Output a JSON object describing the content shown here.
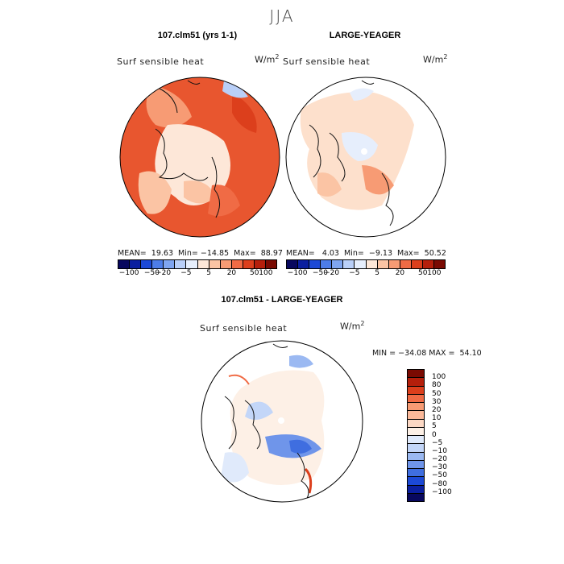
{
  "season": "JJA",
  "panels": [
    {
      "title": "107.clm51 (yrs 1-1)",
      "variable": "Surf sensible heat",
      "units_base": "W/m",
      "units_exp": "2",
      "stats": "MEAN=  19.63  Min= −14.85  Max=  88.97",
      "fill": "#e8562f",
      "colorbar_labels": [
        "−100",
        "−50",
        "−20",
        "−5",
        "5",
        "20",
        "50",
        "100"
      ]
    },
    {
      "title": "LARGE-YEAGER",
      "variable": "Surf sensible heat",
      "units_base": "W/m",
      "units_exp": "2",
      "stats": "MEAN=   4.03  Min=  −9.13  Max=  50.52",
      "fill": "#fde0cc",
      "colorbar_labels": [
        "−100",
        "−50",
        "−20",
        "−5",
        "5",
        "20",
        "50",
        "100"
      ]
    }
  ],
  "diff": {
    "title": "107.clm51 - LARGE-YEAGER",
    "variable": "Surf sensible heat",
    "units_base": "W/m",
    "units_exp": "2",
    "minmax": "MIN = −34.08 MAX =  54.10",
    "colorbar_labels": [
      "100",
      "80",
      "50",
      "30",
      "20",
      "10",
      "5",
      "0",
      "−5",
      "−10",
      "−20",
      "−30",
      "−50",
      "−80",
      "−100"
    ]
  },
  "colors": {
    "abs_scale": [
      "#08085e",
      "#0b1f9f",
      "#1c49d6",
      "#4d7de8",
      "#7fa5f0",
      "#b9cff8",
      "#e6eefc",
      "#fde7d8",
      "#fbc4a4",
      "#f79b74",
      "#f06b45",
      "#dc3f1c",
      "#b51f0b",
      "#7a0a02"
    ],
    "diff_scale": [
      "#7a0a02",
      "#b51f0b",
      "#dc3f1c",
      "#f06b45",
      "#f79b74",
      "#fbb99a",
      "#fcd8c4",
      "#fdf0e6",
      "#e0eafb",
      "#c3d6f8",
      "#9bb9f2",
      "#6f95ea",
      "#3f6ee0",
      "#1c49d6",
      "#0b1f9f",
      "#08085e"
    ]
  }
}
